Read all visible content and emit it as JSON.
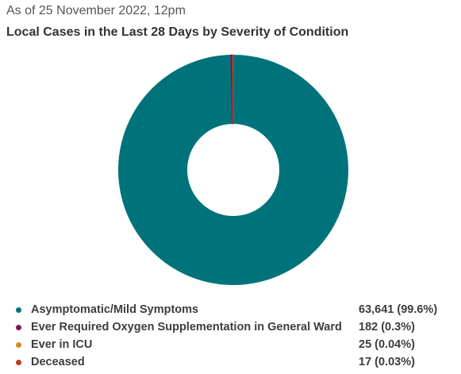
{
  "header": {
    "subtitle": "As of 25 November 2022, 12pm",
    "title": "Local Cases in the Last 28 Days by Severity of Condition"
  },
  "chart_data": {
    "type": "pie",
    "donut": true,
    "title": "Local Cases in the Last 28 Days by Severity of Condition",
    "subtitle": "As of 25 November 2022, 12pm",
    "legend_position": "bottom",
    "slices": [
      {
        "name": "Asymptomatic/Mild Symptoms",
        "value": 63641,
        "percent_label": "63,641 (99.6%)",
        "color": "#00737a"
      },
      {
        "name": "Ever Required Oxygen Supplementation in General Ward",
        "value": 182,
        "percent_label": "182 (0.3%)",
        "color": "#7a1a4e"
      },
      {
        "name": "Ever in ICU",
        "value": 25,
        "percent_label": "25 (0.04%)",
        "color": "#d98a1c"
      },
      {
        "name": "Deceased",
        "value": 17,
        "percent_label": "17 (0.03%)",
        "color": "#b83a1e"
      }
    ]
  }
}
